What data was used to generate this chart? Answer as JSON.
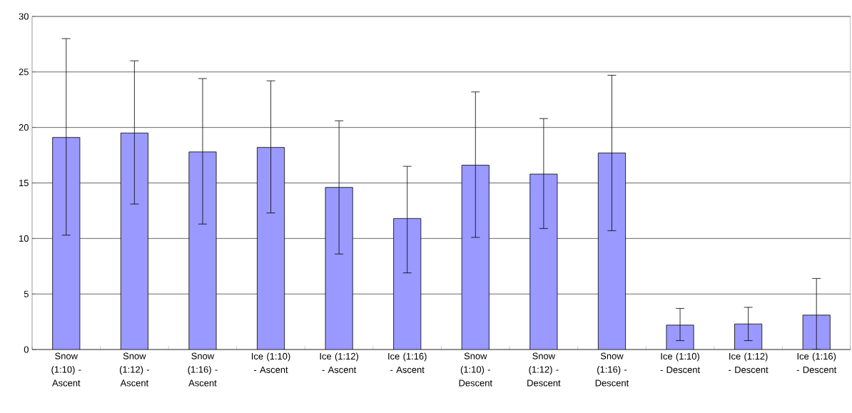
{
  "chart_data": {
    "type": "bar",
    "categories": [
      "Snow (1:10) - Ascent",
      "Snow (1:12) - Ascent",
      "Snow (1:16) - Ascent",
      "Ice (1:10) - Ascent",
      "Ice (1:12) - Ascent",
      "Ice (1:16) - Ascent",
      "Snow (1:10) - Descent",
      "Snow (1:12) - Descent",
      "Snow (1:16) - Descent",
      "Ice (1:10) - Descent",
      "Ice (1:12) - Descent",
      "Ice (1:16) - Descent"
    ],
    "values": [
      19.1,
      19.5,
      17.8,
      18.2,
      14.6,
      11.8,
      16.6,
      15.8,
      17.7,
      2.2,
      2.3,
      3.1
    ],
    "errors": [
      [
        10.3,
        28.0
      ],
      [
        13.1,
        26.0
      ],
      [
        11.3,
        24.4
      ],
      [
        12.3,
        24.2
      ],
      [
        8.6,
        20.6
      ],
      [
        6.9,
        16.5
      ],
      [
        10.1,
        23.2
      ],
      [
        10.9,
        20.8
      ],
      [
        10.7,
        24.7
      ],
      [
        0.8,
        3.7
      ],
      [
        0.8,
        3.8
      ],
      [
        0,
        6.4
      ]
    ],
    "color": "#9999ff",
    "ylim": [
      0,
      30
    ],
    "yticks": [
      0,
      5,
      10,
      15,
      20,
      25,
      30
    ],
    "grid": "y"
  }
}
